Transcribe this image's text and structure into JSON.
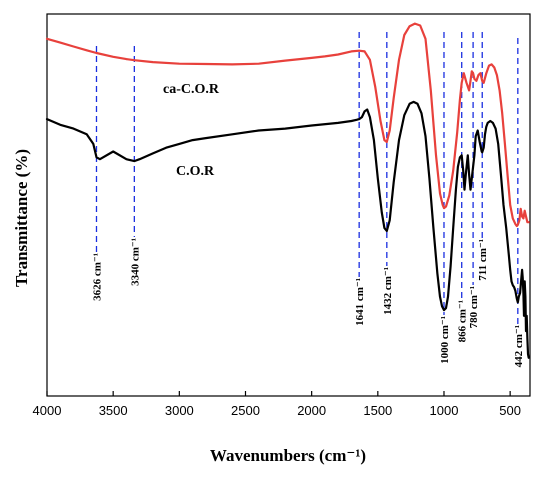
{
  "chart_data": {
    "type": "line",
    "xlabel": "Wavenumbers (cm⁻¹)",
    "ylabel": "Transmittance (%)",
    "xlim": [
      4000,
      350
    ],
    "x_reversed": true,
    "xticks": [
      4000,
      3500,
      3000,
      2500,
      2000,
      1500,
      1000,
      500
    ],
    "yticks_shown": false,
    "grid": false,
    "series": [
      {
        "name": "ca-C.O.R",
        "color": "#e8413c",
        "x": [
          4000,
          3900,
          3800,
          3700,
          3626,
          3500,
          3400,
          3340,
          3200,
          3000,
          2800,
          2600,
          2400,
          2200,
          2000,
          1900,
          1800,
          1700,
          1641,
          1600,
          1560,
          1520,
          1480,
          1450,
          1432,
          1410,
          1380,
          1340,
          1300,
          1260,
          1220,
          1180,
          1140,
          1100,
          1060,
          1030,
          1010,
          1000,
          985,
          960,
          930,
          900,
          880,
          866,
          850,
          830,
          810,
          800,
          790,
          780,
          770,
          755,
          740,
          725,
          711,
          700,
          680,
          660,
          640,
          620,
          600,
          580,
          560,
          540,
          520,
          500,
          480,
          460,
          450,
          442,
          430,
          420,
          410,
          400,
          390,
          380,
          370,
          360
        ],
        "y": [
          93.5,
          92.5,
          91.5,
          90.5,
          89.8,
          88.8,
          88.2,
          87.9,
          87.4,
          87.0,
          86.9,
          86.8,
          87.0,
          87.8,
          88.5,
          88.9,
          89.4,
          90.2,
          90.4,
          90.2,
          88.0,
          81.0,
          72.0,
          67.0,
          66.5,
          69.5,
          78.0,
          88.0,
          94.5,
          96.8,
          97.5,
          97.0,
          93.5,
          80.0,
          63.0,
          53.0,
          50.0,
          49.2,
          49.6,
          52.5,
          59.0,
          69.0,
          77.5,
          82.0,
          84.5,
          82.0,
          80.0,
          82.5,
          85.0,
          84.5,
          83.0,
          82.5,
          84.0,
          84.5,
          82.5,
          82.0,
          84.5,
          86.5,
          86.8,
          86.0,
          84.0,
          80.0,
          74.0,
          66.0,
          58.0,
          50.0,
          46.5,
          45.0,
          44.5,
          44.8,
          46.0,
          49.0,
          47.0,
          46.5,
          48.5,
          47.0,
          45.5,
          45.5
        ]
      },
      {
        "name": "C.O.R",
        "color": "#000000",
        "x": [
          4000,
          3900,
          3800,
          3700,
          3650,
          3626,
          3600,
          3500,
          3400,
          3340,
          3300,
          3200,
          3100,
          3000,
          2900,
          2800,
          2600,
          2400,
          2200,
          2000,
          1800,
          1700,
          1660,
          1641,
          1620,
          1600,
          1580,
          1560,
          1530,
          1500,
          1470,
          1450,
          1432,
          1410,
          1380,
          1340,
          1300,
          1260,
          1230,
          1200,
          1170,
          1140,
          1110,
          1080,
          1050,
          1030,
          1015,
          1000,
          985,
          970,
          950,
          930,
          910,
          895,
          880,
          866,
          855,
          845,
          835,
          820,
          810,
          800,
          790,
          780,
          770,
          760,
          745,
          730,
          715,
          711,
          700,
          690,
          680,
          670,
          650,
          630,
          610,
          590,
          570,
          550,
          530,
          510,
          500,
          490,
          480,
          470,
          460,
          450,
          442,
          435,
          425,
          415,
          410,
          405,
          400,
          395,
          390,
          385,
          380,
          375,
          370,
          365,
          360
        ],
        "y": [
          72.5,
          71.0,
          70.0,
          68.5,
          66.0,
          62.5,
          62.0,
          64.0,
          62.0,
          61.5,
          62.0,
          63.5,
          65.0,
          66.0,
          67.0,
          67.5,
          68.5,
          69.5,
          70.0,
          70.8,
          71.5,
          72.0,
          72.3,
          72.5,
          73.0,
          74.5,
          75.0,
          73.0,
          67.0,
          57.0,
          48.0,
          44.0,
          43.2,
          46.0,
          56.0,
          67.0,
          73.5,
          76.5,
          77.0,
          76.5,
          74.0,
          68.0,
          57.0,
          44.0,
          32.0,
          26.0,
          23.5,
          22.5,
          23.0,
          26.0,
          34.0,
          44.0,
          54.0,
          60.0,
          62.5,
          63.0,
          59.0,
          54.0,
          58.0,
          63.0,
          58.0,
          54.0,
          57.0,
          60.0,
          63.0,
          68.0,
          69.5,
          66.5,
          64.0,
          63.8,
          65.0,
          68.5,
          70.5,
          71.5,
          72.0,
          71.5,
          70.0,
          66.0,
          58.0,
          50.0,
          44.0,
          37.0,
          33.0,
          30.0,
          29.0,
          28.5,
          27.5,
          25.5,
          24.5,
          26.0,
          27.0,
          31.0,
          33.0,
          31.0,
          27.0,
          21.0,
          30.0,
          26.0,
          17.0,
          21.0,
          15.0,
          11.0,
          10.0
        ]
      }
    ],
    "series_labels": [
      "ca-C.O.R",
      "C.O.R"
    ],
    "annotations": [
      {
        "text": "3626 cm⁻¹",
        "x": 3626
      },
      {
        "text": "3340 cm⁻¹",
        "x": 3340
      },
      {
        "text": "1641 cm⁻¹",
        "x": 1641
      },
      {
        "text": "1432 cm⁻¹",
        "x": 1432
      },
      {
        "text": "1000 cm⁻¹",
        "x": 1000
      },
      {
        "text": "866 cm⁻¹",
        "x": 866
      },
      {
        "text": "780 cm⁻¹",
        "x": 780
      },
      {
        "text": "711 cm⁻¹",
        "x": 711
      },
      {
        "text": "442 cm⁻¹",
        "x": 442
      }
    ],
    "reference_line_color": "#1a2ee0"
  }
}
